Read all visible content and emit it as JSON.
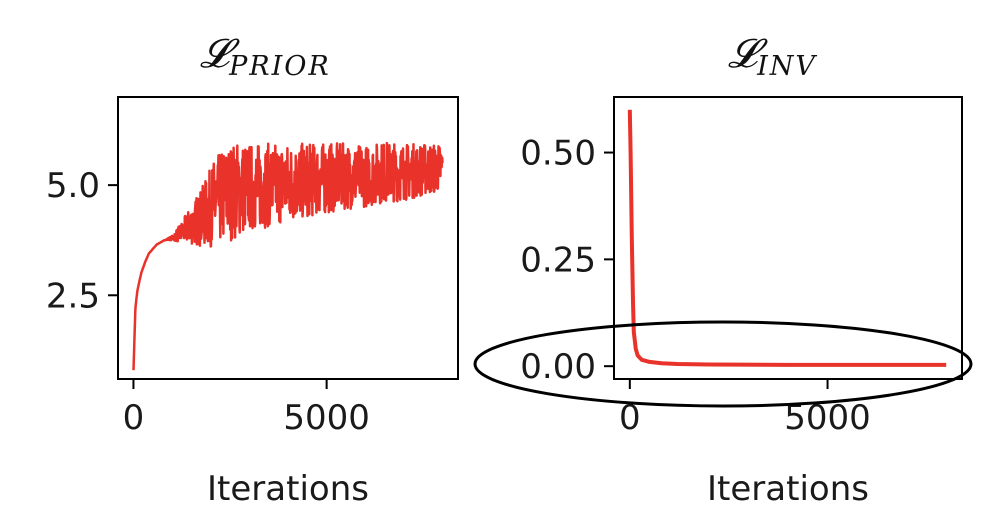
{
  "chart_data": [
    {
      "type": "line",
      "title": "𝓛",
      "title_subscript": "PRIOR",
      "xlabel": "Iterations",
      "ylabel": "",
      "xlim": [
        -400,
        8400
      ],
      "ylim": [
        0.6,
        7.0
      ],
      "xticks": [
        0,
        5000
      ],
      "xtick_labels": [
        "0",
        "5000"
      ],
      "yticks": [
        2.5,
        5.0
      ],
      "ytick_labels": [
        "2.5",
        "5.0"
      ],
      "grid": false,
      "color": "#e8322a",
      "series": [
        {
          "x": [
            0,
            50,
            100,
            200,
            300,
            400,
            600,
            800,
            1000,
            1200,
            1500,
            1800,
            2100,
            2400,
            2700,
            3000,
            3500,
            4000,
            4500,
            5000,
            5500,
            6000,
            6500,
            7000,
            7500,
            8000
          ],
          "center": [
            0.8,
            2.2,
            2.6,
            3.0,
            3.25,
            3.45,
            3.65,
            3.75,
            3.8,
            3.9,
            4.1,
            4.3,
            4.6,
            4.8,
            4.9,
            4.95,
            5.0,
            5.05,
            5.1,
            5.15,
            5.2,
            5.2,
            5.3,
            5.3,
            5.35,
            5.4
          ],
          "spread": [
            0,
            0,
            0,
            0,
            0,
            0,
            0,
            0,
            0.05,
            0.2,
            0.45,
            0.7,
            1.0,
            1.1,
            1.1,
            1.0,
            0.95,
            0.9,
            0.85,
            0.8,
            0.75,
            0.7,
            0.7,
            0.65,
            0.6,
            0.55
          ]
        }
      ]
    },
    {
      "type": "line",
      "title": "𝓛",
      "title_subscript": "INV",
      "xlabel": "Iterations",
      "ylabel": "",
      "xlim": [
        -400,
        8400
      ],
      "ylim": [
        -0.03,
        0.63
      ],
      "xticks": [
        0,
        5000
      ],
      "xtick_labels": [
        "0",
        "5000"
      ],
      "yticks": [
        0.0,
        0.25,
        0.5
      ],
      "ytick_labels": [
        "0.00",
        "0.25",
        "0.50"
      ],
      "grid": false,
      "color": "#e8322a",
      "series": [
        {
          "x": [
            0,
            20,
            50,
            80,
            100,
            150,
            200,
            300,
            500,
            800,
            1200,
            2000,
            4000,
            6000,
            8000
          ],
          "y": [
            0.6,
            0.5,
            0.3,
            0.15,
            0.08,
            0.04,
            0.025,
            0.015,
            0.01,
            0.007,
            0.005,
            0.004,
            0.003,
            0.003,
            0.003
          ]
        }
      ]
    }
  ]
}
